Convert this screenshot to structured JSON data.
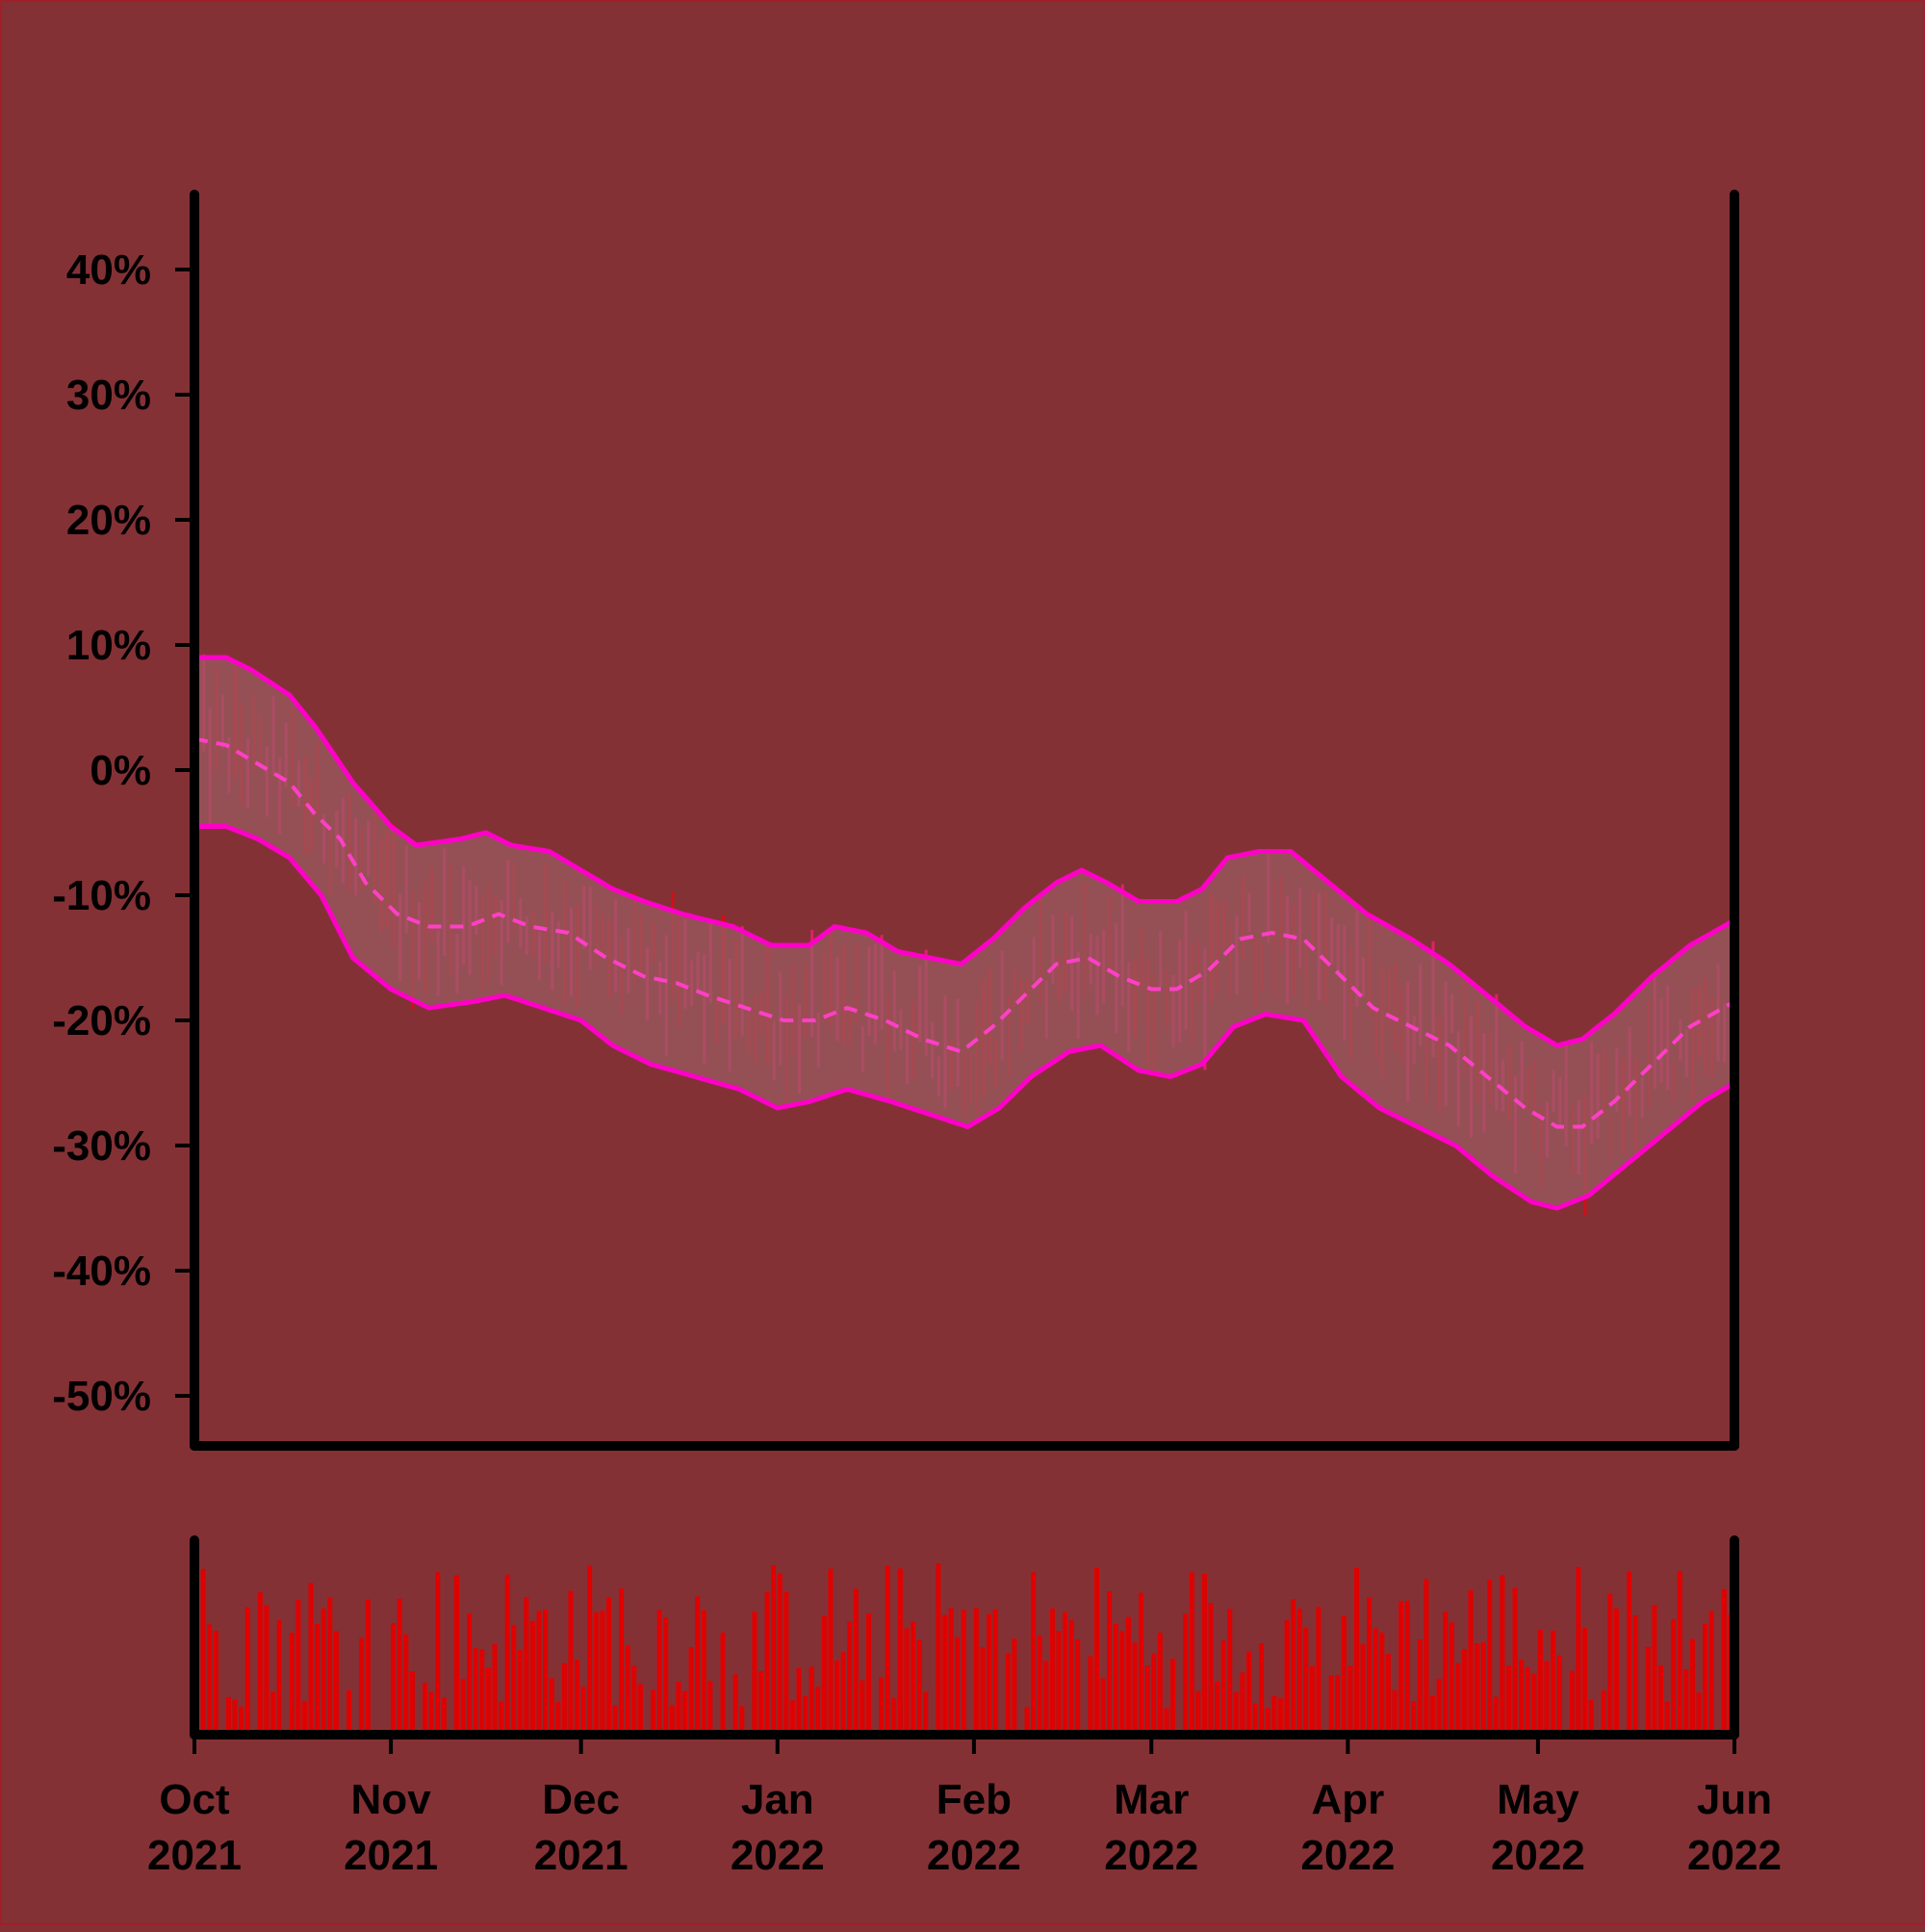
{
  "chart_data": [
    {
      "type": "line",
      "subtype": "ohlc-with-bollinger-bands",
      "title": "",
      "xlabel": "",
      "ylabel": "",
      "ylim": [
        -0.54,
        0.46
      ],
      "y_ticks": [
        0.4,
        0.3,
        0.2,
        0.1,
        0.0,
        -0.1,
        -0.2,
        -0.3,
        -0.4,
        -0.5
      ],
      "y_tick_labels": [
        "40%",
        "30%",
        "20%",
        "10%",
        "0%",
        "-10%",
        "-20%",
        "-30%",
        "-40%",
        "-50%"
      ],
      "x_range": [
        "2021-10-01",
        "2022-06-01"
      ],
      "x_ticks": [
        "2021-10-01",
        "2021-11-01",
        "2021-12-01",
        "2022-01-01",
        "2022-02-01",
        "2022-03-01",
        "2022-04-01",
        "2022-05-01",
        "2022-06-01"
      ],
      "x_tick_labels": [
        [
          "Oct",
          "2021"
        ],
        [
          "Nov",
          "2021"
        ],
        [
          "Dec",
          "2021"
        ],
        [
          "Jan",
          "2022"
        ],
        [
          "Feb",
          "2022"
        ],
        [
          "Mar",
          "2022"
        ],
        [
          "Apr",
          "2022"
        ],
        [
          "May",
          "2022"
        ],
        [
          "Jun",
          "2022"
        ]
      ],
      "series": [
        {
          "role": "upper band",
          "points": [
            [
              "2021-10-01",
              0.09
            ],
            [
              "2021-10-06",
              0.09
            ],
            [
              "2021-10-10",
              0.08
            ],
            [
              "2021-10-16",
              0.06
            ],
            [
              "2021-10-20",
              0.035
            ],
            [
              "2021-10-26",
              -0.01
            ],
            [
              "2021-11-01",
              -0.045
            ],
            [
              "2021-11-05",
              -0.06
            ],
            [
              "2021-11-12",
              -0.055
            ],
            [
              "2021-11-16",
              -0.05
            ],
            [
              "2021-11-20",
              -0.06
            ],
            [
              "2021-11-26",
              -0.065
            ],
            [
              "2021-12-01",
              -0.08
            ],
            [
              "2021-12-06",
              -0.095
            ],
            [
              "2021-12-11",
              -0.105
            ],
            [
              "2021-12-17",
              -0.115
            ],
            [
              "2021-12-25",
              -0.125
            ],
            [
              "2021-12-31",
              -0.14
            ],
            [
              "2022-01-06",
              -0.14
            ],
            [
              "2022-01-10",
              -0.125
            ],
            [
              "2022-01-15",
              -0.13
            ],
            [
              "2022-01-20",
              -0.145
            ],
            [
              "2022-01-25",
              -0.15
            ],
            [
              "2022-01-30",
              -0.155
            ],
            [
              "2022-02-04",
              -0.135
            ],
            [
              "2022-02-09",
              -0.11
            ],
            [
              "2022-02-14",
              -0.09
            ],
            [
              "2022-02-18",
              -0.08
            ],
            [
              "2022-02-22",
              -0.09
            ],
            [
              "2022-02-27",
              -0.105
            ],
            [
              "2022-03-05",
              -0.105
            ],
            [
              "2022-03-09",
              -0.095
            ],
            [
              "2022-03-13",
              -0.07
            ],
            [
              "2022-03-18",
              -0.065
            ],
            [
              "2022-03-23",
              -0.065
            ],
            [
              "2022-03-29",
              -0.09
            ],
            [
              "2022-04-04",
              -0.115
            ],
            [
              "2022-04-11",
              -0.135
            ],
            [
              "2022-04-17",
              -0.155
            ],
            [
              "2022-04-23",
              -0.18
            ],
            [
              "2022-04-29",
              -0.205
            ],
            [
              "2022-05-04",
              -0.22
            ],
            [
              "2022-05-08",
              -0.215
            ],
            [
              "2022-05-13",
              -0.195
            ],
            [
              "2022-05-19",
              -0.165
            ],
            [
              "2022-05-25",
              -0.14
            ],
            [
              "2022-06-01",
              -0.12
            ]
          ]
        },
        {
          "role": "moving average",
          "points": [
            [
              "2021-10-01",
              0.025
            ],
            [
              "2021-10-06",
              0.02
            ],
            [
              "2021-10-11",
              0.005
            ],
            [
              "2021-10-16",
              -0.01
            ],
            [
              "2021-10-20",
              -0.035
            ],
            [
              "2021-10-24",
              -0.055
            ],
            [
              "2021-10-28",
              -0.09
            ],
            [
              "2021-11-02",
              -0.115
            ],
            [
              "2021-11-07",
              -0.125
            ],
            [
              "2021-11-13",
              -0.125
            ],
            [
              "2021-11-18",
              -0.115
            ],
            [
              "2021-11-23",
              -0.125
            ],
            [
              "2021-11-29",
              -0.13
            ],
            [
              "2021-12-05",
              -0.15
            ],
            [
              "2021-12-11",
              -0.165
            ],
            [
              "2021-12-16",
              -0.17
            ],
            [
              "2021-12-21",
              -0.18
            ],
            [
              "2021-12-27",
              -0.19
            ],
            [
              "2022-01-02",
              -0.2
            ],
            [
              "2022-01-07",
              -0.2
            ],
            [
              "2022-01-12",
              -0.19
            ],
            [
              "2022-01-18",
              -0.2
            ],
            [
              "2022-01-24",
              -0.215
            ],
            [
              "2022-01-30",
              -0.225
            ],
            [
              "2022-02-04",
              -0.205
            ],
            [
              "2022-02-09",
              -0.18
            ],
            [
              "2022-02-14",
              -0.155
            ],
            [
              "2022-02-19",
              -0.15
            ],
            [
              "2022-02-24",
              -0.165
            ],
            [
              "2022-03-01",
              -0.175
            ],
            [
              "2022-03-05",
              -0.175
            ],
            [
              "2022-03-10",
              -0.16
            ],
            [
              "2022-03-15",
              -0.135
            ],
            [
              "2022-03-20",
              -0.13
            ],
            [
              "2022-03-25",
              -0.135
            ],
            [
              "2022-03-30",
              -0.16
            ],
            [
              "2022-04-05",
              -0.19
            ],
            [
              "2022-04-11",
              -0.205
            ],
            [
              "2022-04-17",
              -0.22
            ],
            [
              "2022-04-23",
              -0.245
            ],
            [
              "2022-04-29",
              -0.27
            ],
            [
              "2022-05-04",
              -0.285
            ],
            [
              "2022-05-08",
              -0.285
            ],
            [
              "2022-05-13",
              -0.265
            ],
            [
              "2022-05-19",
              -0.235
            ],
            [
              "2022-05-25",
              -0.205
            ],
            [
              "2022-06-01",
              -0.185
            ]
          ]
        },
        {
          "role": "lower band",
          "points": [
            [
              "2021-10-01",
              -0.045
            ],
            [
              "2021-10-06",
              -0.045
            ],
            [
              "2021-10-11",
              -0.055
            ],
            [
              "2021-10-16",
              -0.07
            ],
            [
              "2021-10-21",
              -0.1
            ],
            [
              "2021-10-26",
              -0.15
            ],
            [
              "2021-11-01",
              -0.175
            ],
            [
              "2021-11-07",
              -0.19
            ],
            [
              "2021-11-14",
              -0.185
            ],
            [
              "2021-11-19",
              -0.18
            ],
            [
              "2021-11-25",
              -0.19
            ],
            [
              "2021-12-01",
              -0.2
            ],
            [
              "2021-12-06",
              -0.22
            ],
            [
              "2021-12-12",
              -0.235
            ],
            [
              "2021-12-19",
              -0.245
            ],
            [
              "2021-12-26",
              -0.255
            ],
            [
              "2022-01-01",
              -0.27
            ],
            [
              "2022-01-06",
              -0.265
            ],
            [
              "2022-01-12",
              -0.255
            ],
            [
              "2022-01-19",
              -0.265
            ],
            [
              "2022-01-25",
              -0.275
            ],
            [
              "2022-01-31",
              -0.285
            ],
            [
              "2022-02-05",
              -0.27
            ],
            [
              "2022-02-10",
              -0.245
            ],
            [
              "2022-02-16",
              -0.225
            ],
            [
              "2022-02-21",
              -0.22
            ],
            [
              "2022-02-27",
              -0.24
            ],
            [
              "2022-03-04",
              -0.245
            ],
            [
              "2022-03-09",
              -0.235
            ],
            [
              "2022-03-14",
              -0.205
            ],
            [
              "2022-03-19",
              -0.195
            ],
            [
              "2022-03-25",
              -0.2
            ],
            [
              "2022-03-31",
              -0.245
            ],
            [
              "2022-04-06",
              -0.27
            ],
            [
              "2022-04-12",
              -0.285
            ],
            [
              "2022-04-18",
              -0.3
            ],
            [
              "2022-04-24",
              -0.325
            ],
            [
              "2022-04-30",
              -0.345
            ],
            [
              "2022-05-04",
              -0.35
            ],
            [
              "2022-05-09",
              -0.34
            ],
            [
              "2022-05-15",
              -0.315
            ],
            [
              "2022-05-21",
              -0.29
            ],
            [
              "2022-05-27",
              -0.265
            ],
            [
              "2022-06-01",
              -0.25
            ]
          ]
        }
      ],
      "grid": false,
      "legend": "none"
    },
    {
      "type": "bar",
      "subtype": "volume",
      "title": "",
      "xlabel": "",
      "ylabel": "",
      "x_range": [
        "2021-10-01",
        "2022-06-01"
      ],
      "y_ticks": [],
      "grid": false,
      "legend": "none"
    }
  ],
  "colors": {
    "background": "#843135",
    "frame_border": "#a01f2a",
    "axis": "#000000",
    "band_fill": "#9b5b62",
    "band_line": "#ff00c8",
    "moving_average": "#ff3fc8",
    "candle_up": "#e0206a",
    "candle_down": "#d0101a",
    "volume_bar": "#e00000"
  }
}
